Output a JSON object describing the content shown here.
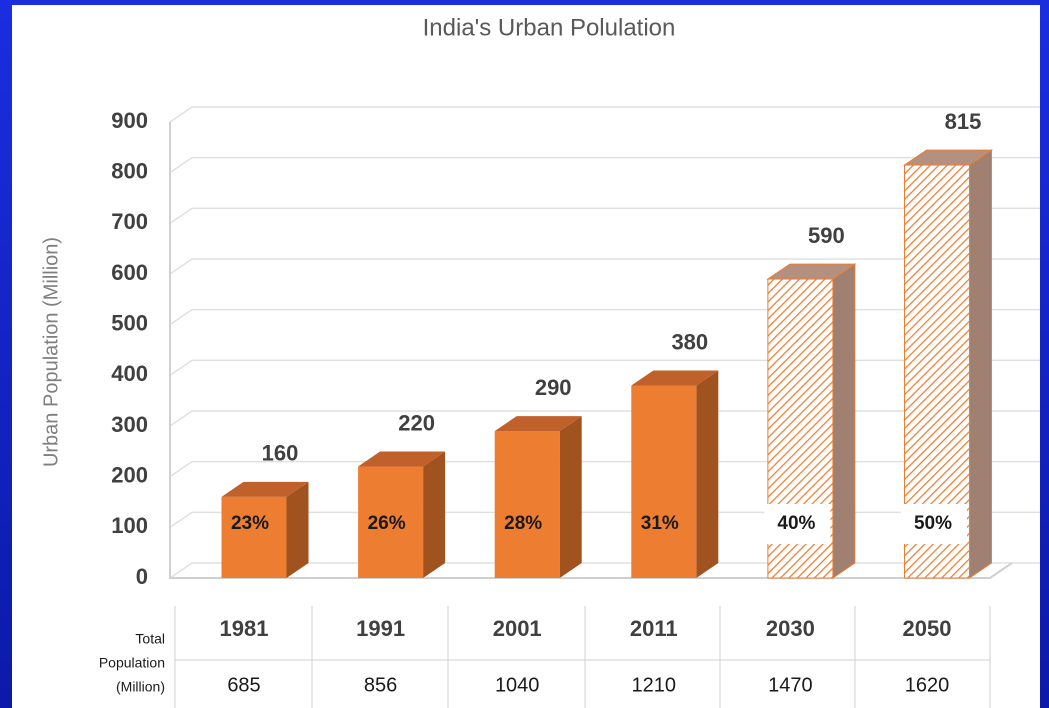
{
  "chart_data": {
    "type": "bar",
    "title": "India's Urban Polulation",
    "y_label": "Urban Population (Million)",
    "categories": [
      "1981",
      "1991",
      "2001",
      "2011",
      "2030",
      "2050"
    ],
    "values": [
      160,
      220,
      290,
      380,
      590,
      815
    ],
    "share_labels": [
      "23%",
      "26%",
      "28%",
      "31%",
      "40%",
      "50%"
    ],
    "projected": [
      false,
      false,
      false,
      false,
      true,
      true
    ],
    "color": "#ed7d31",
    "side_color": "#a0521f",
    "ylim": [
      0,
      900
    ],
    "yticks": [
      0,
      100,
      200,
      300,
      400,
      500,
      600,
      700,
      800,
      900
    ],
    "grid": true,
    "table": {
      "row_label": [
        "Total",
        "Population",
        "(Million)"
      ],
      "values": [
        685,
        856,
        1040,
        1210,
        1470,
        1620
      ]
    }
  }
}
